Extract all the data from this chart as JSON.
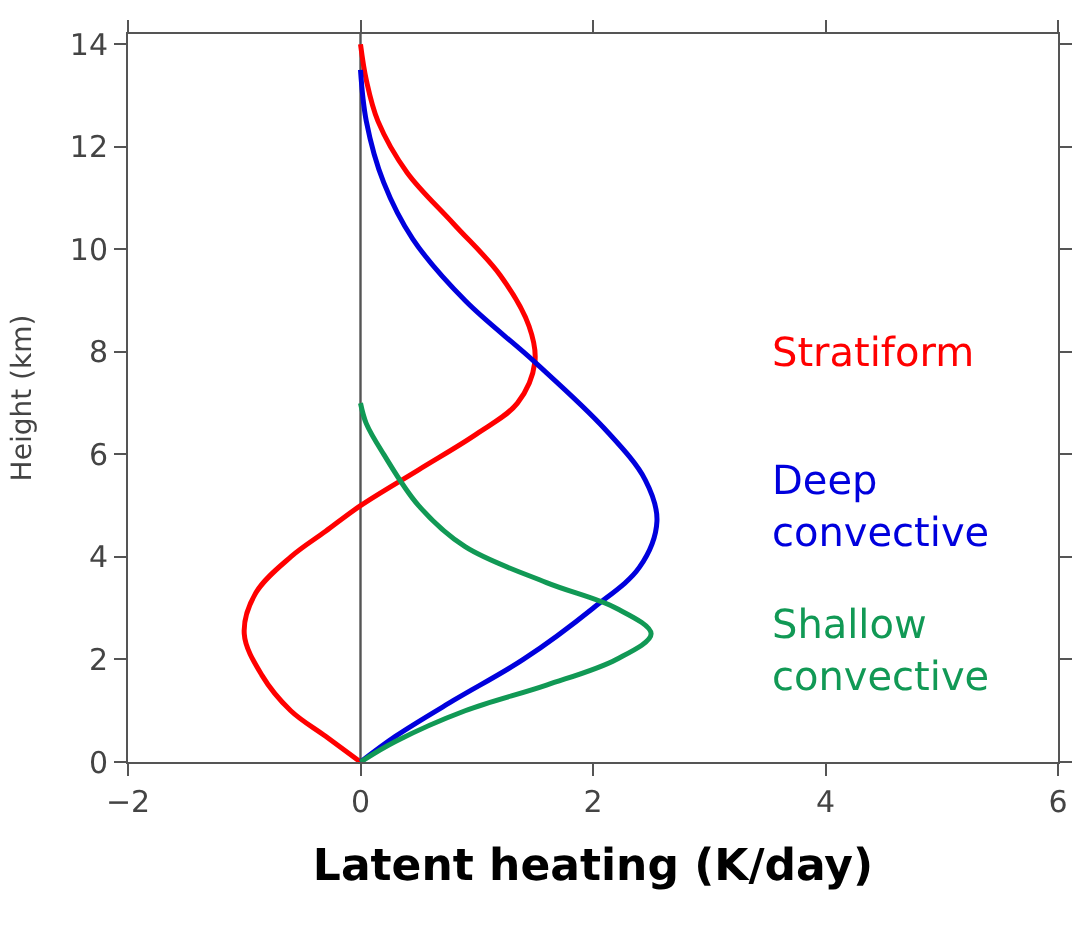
{
  "chart_data": {
    "type": "line",
    "xlabel": "Latent heating (K/day)",
    "ylabel": "Height (km)",
    "xlim": [
      -2,
      6
    ],
    "xticks": [
      -2,
      0,
      2,
      4,
      6
    ],
    "ylim": [
      0,
      14.2
    ],
    "yticks": [
      0,
      2,
      4,
      6,
      8,
      10,
      12,
      14
    ],
    "grid": false,
    "legend": false,
    "marker": "none",
    "line_style": "solid",
    "ref_lines": [
      {
        "axis": "x",
        "value": 0,
        "color": "#555555"
      }
    ],
    "series": [
      {
        "name": "Stratiform",
        "color": "#ff0000",
        "x": [
          0,
          -0.3,
          -0.6,
          -0.85,
          -1.0,
          -0.9,
          -0.6,
          -0.3,
          0,
          0.5,
          1.0,
          1.35,
          1.5,
          1.45,
          1.2,
          0.8,
          0.4,
          0.15,
          0.05,
          0
        ],
        "values": [
          0,
          0.5,
          1,
          1.7,
          2.5,
          3.3,
          4,
          4.5,
          5,
          5.7,
          6.4,
          7,
          7.8,
          8.5,
          9.5,
          10.5,
          11.5,
          12.5,
          13.3,
          14
        ]
      },
      {
        "name": "Deep\nconvective",
        "color": "#0000dd",
        "x": [
          0,
          0.3,
          0.8,
          1.4,
          2.0,
          2.4,
          2.55,
          2.45,
          2.1,
          1.5,
          0.9,
          0.45,
          0.2,
          0.05,
          0
        ],
        "values": [
          0,
          0.5,
          1.2,
          2,
          3,
          3.8,
          4.7,
          5.5,
          6.5,
          7.8,
          9,
          10.2,
          11.3,
          12.5,
          13.5
        ]
      },
      {
        "name": "Shallow\nconvective",
        "color": "#119955",
        "x": [
          0,
          0.3,
          0.9,
          1.6,
          2.2,
          2.5,
          2.2,
          1.6,
          0.9,
          0.5,
          0.2,
          0.05,
          0
        ],
        "values": [
          0,
          0.4,
          1,
          1.5,
          2,
          2.5,
          3,
          3.5,
          4.2,
          5,
          6,
          6.6,
          7
        ]
      }
    ]
  }
}
